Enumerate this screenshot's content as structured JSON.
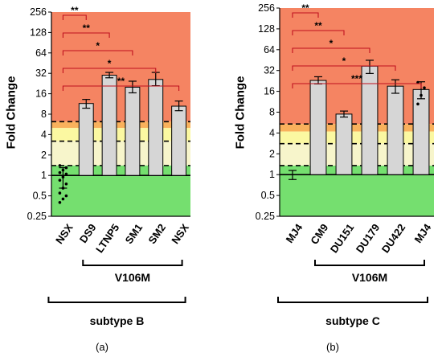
{
  "figure": {
    "panel_labels": [
      "(a)",
      "(b)"
    ]
  },
  "colors": {
    "red_zone": "#f58462",
    "orange_zone": "#f9b15c",
    "yellow_zone": "#fbf8a1",
    "pale_zone": "#f7f5cb",
    "green_zone": "#75df6f",
    "bar_fill": "#d6d6d6",
    "bar_stroke": "#000000",
    "bracket": "#c0111f"
  },
  "chart_data": [
    {
      "type": "bar",
      "panel": "(a)",
      "ylabel": "Fold Change",
      "yscale": "log2",
      "ylim": [
        0.25,
        256
      ],
      "yticks": [
        "0.25",
        "0.5",
        "1",
        "2",
        "4",
        "8",
        "16",
        "32",
        "64",
        "128",
        "256"
      ],
      "categories": [
        "NSX",
        "DS9",
        "LTNP5",
        "SM1",
        "SM2",
        "NSX"
      ],
      "values": [
        1.0,
        11.5,
        30,
        20,
        26,
        10.5
      ],
      "errors_low": [
        0.65,
        9.8,
        27.5,
        16.5,
        21,
        9.0
      ],
      "errors_high": [
        1.3,
        13.2,
        33,
        24.5,
        33,
        12.5
      ],
      "scatter_points": [
        {
          "category": 0,
          "values": [
            0.4,
            0.45,
            0.5,
            0.55,
            0.65,
            0.75,
            0.85,
            0.95,
            1.05,
            1.1,
            1.2,
            1.3,
            1.4
          ]
        }
      ],
      "zones": {
        "red_from": 6.2,
        "orange_from": 5.0,
        "yellow_from": 3.2,
        "pale_from": 1.4,
        "green_from": 0.25
      },
      "dashed_lines": [
        6.2,
        3.2,
        1.4
      ],
      "solid_line": 1,
      "significance": [
        {
          "from": 0,
          "to": 1,
          "label": "**"
        },
        {
          "from": 0,
          "to": 2,
          "label": "**"
        },
        {
          "from": 0,
          "to": 3,
          "label": "*"
        },
        {
          "from": 0,
          "to": 4,
          "label": "*"
        },
        {
          "from": 0,
          "to": 5,
          "label": "**"
        }
      ],
      "group_bracket_inner": {
        "from": 1,
        "to": 5,
        "label": "V106M"
      },
      "group_bracket_outer": {
        "from": 0,
        "to": 5,
        "label": "subtype B"
      }
    },
    {
      "type": "bar",
      "panel": "(b)",
      "ylabel": "Fold Change",
      "yscale": "log2",
      "ylim": [
        0.25,
        256
      ],
      "yticks": [
        "0.25",
        "0.5",
        "1",
        "2",
        "4",
        "8",
        "16",
        "32",
        "64",
        "128",
        "256"
      ],
      "categories": [
        "MJ4",
        "CM9",
        "DU151",
        "DU179",
        "DU422",
        "MJ4"
      ],
      "values": [
        1.0,
        23,
        7.5,
        37,
        19,
        17
      ],
      "errors_low": [
        0.85,
        20.5,
        6.8,
        29,
        15,
        12.5
      ],
      "errors_high": [
        1.15,
        26,
        8.3,
        45,
        23.5,
        22
      ],
      "scatter_points": [
        {
          "category": 5,
          "values": [
            10.5,
            14,
            18,
            21.5
          ]
        }
      ],
      "zones": {
        "red_from": 5.4,
        "orange_from": 4.2,
        "yellow_from": 2.8,
        "pale_from": 1.35,
        "green_from": 0.25
      },
      "dashed_lines": [
        5.4,
        2.8,
        1.35
      ],
      "solid_line": 1,
      "significance": [
        {
          "from": 0,
          "to": 1,
          "label": "**"
        },
        {
          "from": 0,
          "to": 2,
          "label": "**"
        },
        {
          "from": 0,
          "to": 3,
          "label": "*"
        },
        {
          "from": 0,
          "to": 4,
          "label": "*"
        },
        {
          "from": 0,
          "to": 5,
          "label": "***"
        }
      ],
      "group_bracket_inner": {
        "from": 1,
        "to": 5,
        "label": "V106M"
      },
      "group_bracket_outer": {
        "from": 0,
        "to": 5,
        "label": "subtype C"
      }
    }
  ]
}
